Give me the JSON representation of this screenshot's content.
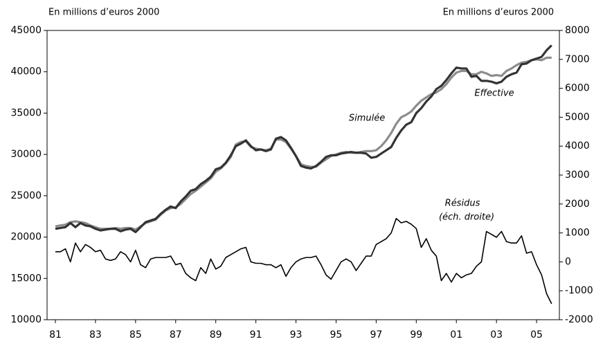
{
  "chart_data": {
    "type": "line",
    "ylabel": "En millions d’euros 2000",
    "y2label": "En millions d’euros 2000",
    "categories": [
      "81",
      null,
      null,
      null,
      null,
      null,
      null,
      null,
      "83",
      null,
      null,
      null,
      null,
      null,
      null,
      null,
      "85",
      null,
      null,
      null,
      null,
      null,
      null,
      null,
      "87",
      null,
      null,
      null,
      null,
      null,
      null,
      null,
      "89",
      null,
      null,
      null,
      null,
      null,
      null,
      null,
      "91",
      null,
      null,
      null,
      null,
      null,
      null,
      null,
      "93",
      null,
      null,
      null,
      null,
      null,
      null,
      null,
      "95",
      null,
      null,
      null,
      null,
      null,
      null,
      null,
      "97",
      null,
      null,
      null,
      null,
      null,
      null,
      null,
      "99",
      null,
      null,
      null,
      null,
      null,
      null,
      null,
      "01",
      null,
      null,
      null,
      null,
      null,
      null,
      null,
      "03",
      null,
      null,
      null,
      null,
      null,
      null,
      null,
      "05",
      null,
      null,
      null
    ],
    "series": [
      {
        "name": "Simulée",
        "color": "#8c8c8c",
        "values": [
          21300,
          21400,
          21500,
          21800,
          21900,
          21800,
          21700,
          21400,
          21200,
          21000,
          21000,
          21000,
          21100,
          21000,
          21100,
          21100,
          20900,
          21300,
          21700,
          21900,
          22100,
          22700,
          23200,
          23500,
          23600,
          24000,
          24600,
          25200,
          25600,
          26100,
          26600,
          27100,
          27900,
          28300,
          28900,
          29700,
          31200,
          31500,
          31600,
          30900,
          30700,
          30600,
          30500,
          30700,
          31800,
          31800,
          31500,
          30700,
          29800,
          28800,
          28600,
          28500,
          28500,
          29000,
          29400,
          29800,
          30000,
          30200,
          30300,
          30200,
          30200,
          30300,
          30400,
          30400,
          30500,
          31000,
          31700,
          32600,
          33700,
          34500,
          34800,
          35200,
          35900,
          36500,
          36900,
          37300,
          37500,
          37900,
          38500,
          39300,
          39900,
          40100,
          40100,
          39700,
          39700,
          40000,
          39800,
          39500,
          39600,
          39500,
          40100,
          40400,
          40800,
          41100,
          41200,
          41400,
          41500,
          41400,
          41700,
          41700
        ]
      },
      {
        "name": "Effective",
        "color": "#333333",
        "values": [
          21000,
          21100,
          21200,
          21700,
          21200,
          21700,
          21400,
          21300,
          21000,
          20800,
          20900,
          21000,
          21000,
          20700,
          20900,
          21000,
          20600,
          21200,
          21800,
          22000,
          22200,
          22800,
          23300,
          23700,
          23500,
          24300,
          24900,
          25600,
          25800,
          26400,
          26800,
          27300,
          28200,
          28400,
          29000,
          29900,
          31000,
          31300,
          31700,
          31000,
          30500,
          30600,
          30400,
          30600,
          31900,
          32100,
          31700,
          30800,
          29800,
          28600,
          28400,
          28300,
          28600,
          29100,
          29700,
          29900,
          29900,
          30100,
          30200,
          30300,
          30200,
          30200,
          30100,
          29600,
          29700,
          30100,
          30500,
          30900,
          32000,
          32900,
          33600,
          33900,
          35000,
          35600,
          36400,
          37000,
          37900,
          38300,
          39000,
          39800,
          40500,
          40400,
          40400,
          39400,
          39500,
          38900,
          38900,
          38800,
          38600,
          38800,
          39400,
          39700,
          39900,
          40900,
          41000,
          41400,
          41600,
          41800,
          42600,
          43200
        ]
      },
      {
        "name": "Résidus",
        "color": "#000000",
        "axis": "y2",
        "values": [
          350,
          350,
          450,
          0,
          650,
          350,
          600,
          500,
          350,
          400,
          100,
          50,
          100,
          350,
          250,
          0,
          400,
          -100,
          -200,
          100,
          150,
          150,
          150,
          200,
          -100,
          -50,
          -400,
          -550,
          -650,
          -200,
          -400,
          100,
          -250,
          -150,
          150,
          250,
          350,
          450,
          500,
          0,
          -50,
          -50,
          -100,
          -100,
          -200,
          -100,
          -500,
          -200,
          0,
          100,
          150,
          150,
          200,
          -100,
          -450,
          -600,
          -300,
          0,
          100,
          0,
          -300,
          -50,
          200,
          200,
          600,
          700,
          800,
          1000,
          1500,
          1350,
          1400,
          1300,
          1150,
          500,
          800,
          400,
          200,
          -650,
          -400,
          -700,
          -400,
          -550,
          -450,
          -400,
          -150,
          0,
          1050,
          950,
          850,
          1050,
          700,
          650,
          650,
          900,
          300,
          350,
          -100,
          -450,
          -1100,
          -1450
        ]
      }
    ],
    "annotations": [
      "(éch. droite)"
    ],
    "ylim": [
      10000,
      45000
    ],
    "yticks": [
      10000,
      15000,
      20000,
      25000,
      30000,
      35000,
      40000,
      45000
    ],
    "y2lim": [
      -2000,
      8000
    ],
    "y2ticks": [
      -2000,
      -1000,
      0,
      1000,
      2000,
      3000,
      4000,
      5000,
      6000,
      7000,
      8000
    ]
  }
}
